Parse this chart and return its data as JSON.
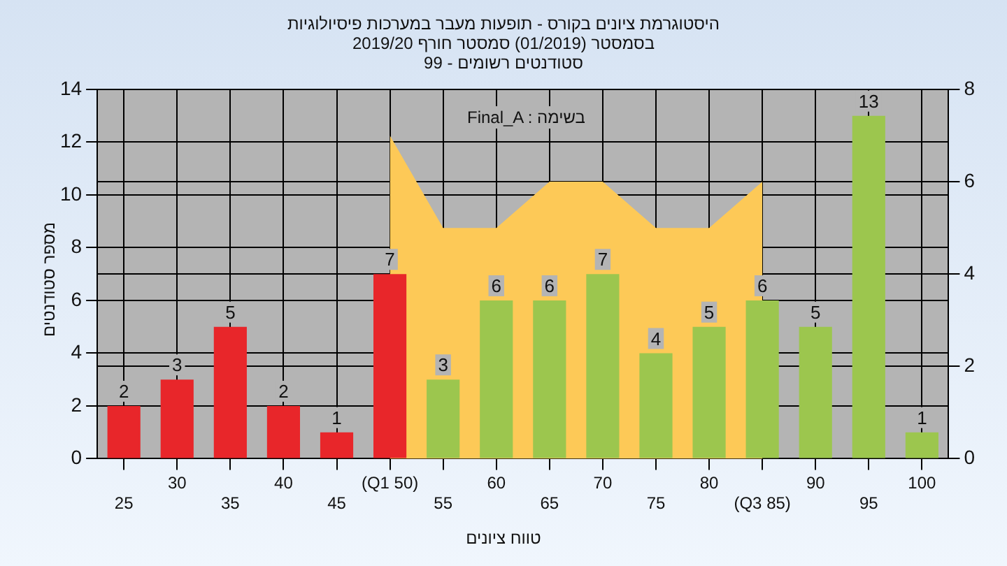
{
  "chart_data": {
    "type": "bar",
    "title": "היסטוגרמת ציונים בקורס - תופעות מעבר במערכות פיסיולוגיות",
    "subtitle": "בסמסטר  (01/2019)  סמסטר חורף 2019/20\nסטודנטים רשומים - 99",
    "xlabel": "טווח ציונים",
    "ylabel": "מספר סטודנטים",
    "annotations": [
      "Final_A : בשימה"
    ],
    "categories": [
      "25",
      "30",
      "35",
      "40",
      "45",
      "(Q1 50)",
      "55",
      "60",
      "65",
      "70",
      "75",
      "80",
      "(Q3 85)",
      "90",
      "95",
      "100"
    ],
    "series": [
      {
        "data_labels": true,
        "colors": [
          "#e8262a",
          "#e8262a",
          "#e8262a",
          "#e8262a",
          "#e8262a",
          "#e8262a",
          "#9cc64e",
          "#9cc64e",
          "#9cc64e",
          "#9cc64e",
          "#9cc64e",
          "#9cc64e",
          "#9cc64e",
          "#9cc64e",
          "#9cc64e",
          "#9cc64e"
        ],
        "values": [
          2,
          3,
          5,
          2,
          1,
          7,
          3,
          6,
          6,
          7,
          4,
          5,
          6,
          5,
          13,
          1
        ]
      },
      {
        "type": "area",
        "axis": "y2",
        "color": "#fdc957",
        "values": [
          null,
          null,
          null,
          null,
          null,
          7,
          5,
          5,
          6,
          6,
          5,
          5,
          6,
          null,
          null,
          null
        ]
      }
    ],
    "ylim": [
      0,
      14
    ],
    "yticks": [
      0,
      2,
      4,
      6,
      8,
      10,
      12,
      14
    ],
    "y2lim": [
      0,
      8
    ],
    "y2ticks": [
      0,
      2,
      4,
      6,
      8
    ],
    "grid": true,
    "legend": false
  }
}
